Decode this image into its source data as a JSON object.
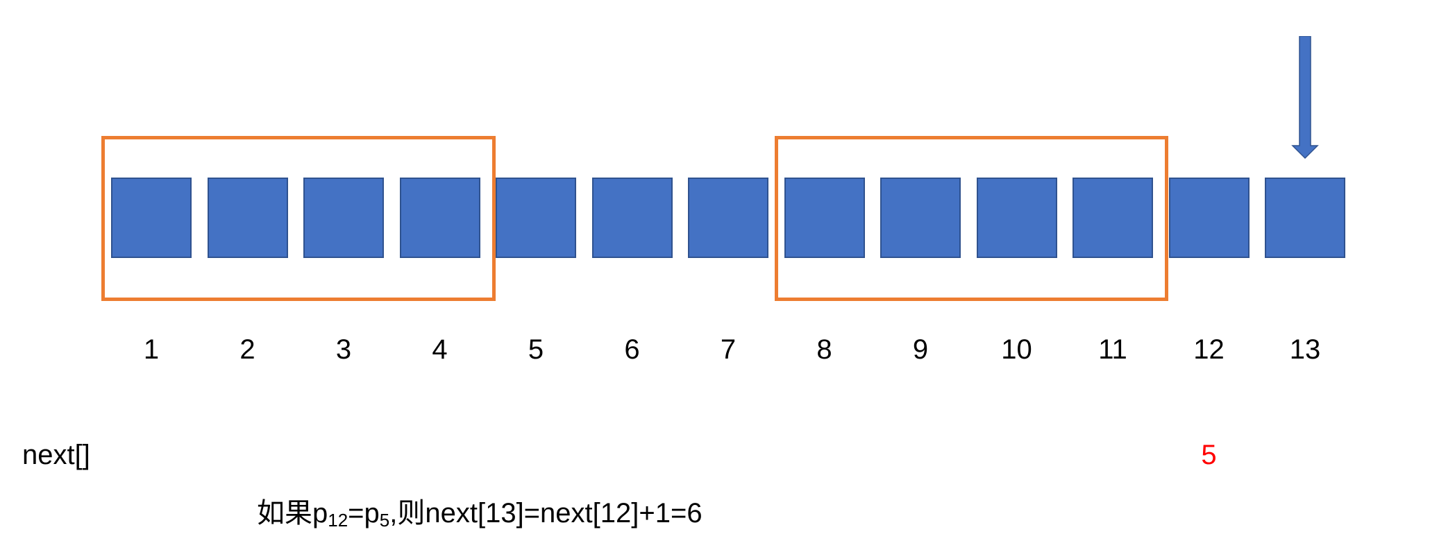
{
  "colors": {
    "cell_fill": "#4472c4",
    "frame_stroke": "#ed7d31",
    "highlight_text": "#ff0000"
  },
  "cells": [
    "1",
    "2",
    "3",
    "4",
    "5",
    "6",
    "7",
    "8",
    "9",
    "10",
    "11",
    "12",
    "13"
  ],
  "frames": [
    {
      "first_index": 1,
      "last_index": 4
    },
    {
      "first_index": 8,
      "last_index": 11
    }
  ],
  "pointer": {
    "target_index": 13
  },
  "next_row": {
    "label": "next[]",
    "value": "5",
    "value_index": 12
  },
  "formula": {
    "prefix": "如果p",
    "sub_a": "12",
    "mid": "=p",
    "sub_b": "5",
    "suffix": ",则next[13]=next[12]+1=6"
  }
}
